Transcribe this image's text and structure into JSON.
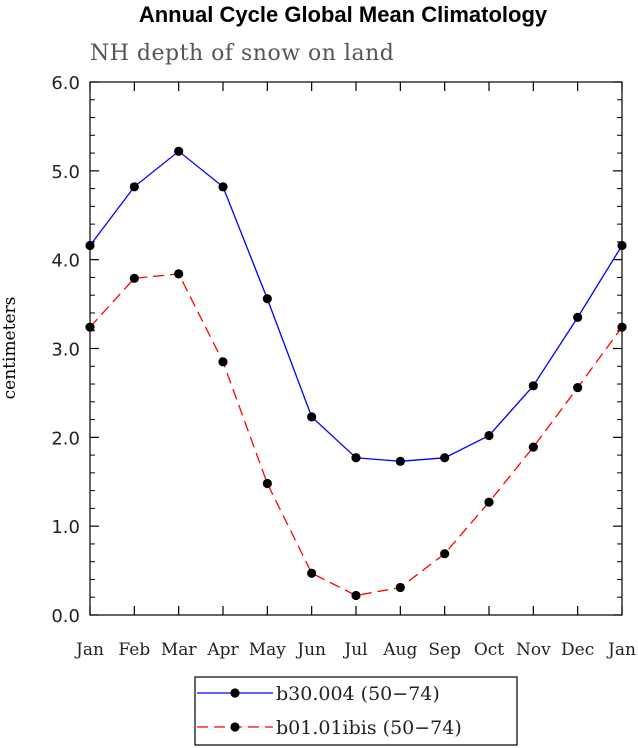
{
  "chart_data": {
    "type": "line",
    "title": "Annual Cycle Global Mean Climatology",
    "subtitle": "NH depth of snow on land",
    "ylabel": "centimeters",
    "xlabel": "",
    "categories": [
      "Jan",
      "Feb",
      "Mar",
      "Apr",
      "May",
      "Jun",
      "Jul",
      "Aug",
      "Sep",
      "Oct",
      "Nov",
      "Dec",
      "Jan"
    ],
    "ylim": [
      0.0,
      6.0
    ],
    "yticks": [
      "0.0",
      "1.0",
      "2.0",
      "3.0",
      "4.0",
      "5.0",
      "6.0"
    ],
    "grid": false,
    "legend_position": "bottom",
    "series": [
      {
        "name": "b30.004 (50−74)",
        "color": "#0000ff",
        "line_style": "solid",
        "marker": "filled-circle",
        "values": [
          4.16,
          4.82,
          5.22,
          4.82,
          3.56,
          2.23,
          1.77,
          1.73,
          1.77,
          2.02,
          2.58,
          3.35,
          4.16
        ]
      },
      {
        "name": "b01.01ibis (50−74)",
        "color": "#ff0000",
        "line_style": "dashed",
        "marker": "filled-circle",
        "values": [
          3.24,
          3.79,
          3.84,
          2.85,
          1.48,
          0.47,
          0.22,
          0.31,
          0.69,
          1.27,
          1.89,
          2.56,
          3.24
        ]
      }
    ]
  }
}
